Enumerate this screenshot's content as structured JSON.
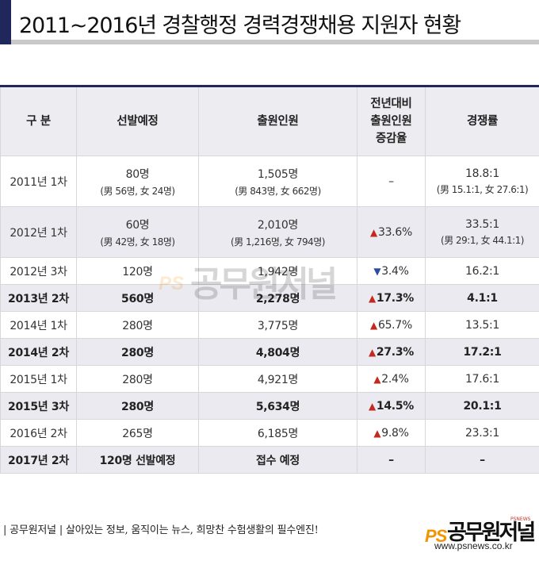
{
  "title": "2011~2016년 경찰행정 경력경쟁채용 지원자 현황",
  "table": {
    "headers": [
      "구 분",
      "선발예정",
      "출원인원",
      "전년대비\n출원인원\n증감율",
      "경쟁률"
    ],
    "rows": [
      {
        "period": "2011년 1차",
        "planned": "80명",
        "planned_sub": "(男 56명, 女 24명)",
        "applicants": "1,505명",
        "applicants_sub": "(男 843명, 女 662명)",
        "change": "–",
        "change_dir": "none",
        "ratio": "18.8:1",
        "ratio_sub": "(男 15.1:1, 女 27.6:1)",
        "bold": false,
        "shade": false,
        "tall": true
      },
      {
        "period": "2012년 1차",
        "planned": "60명",
        "planned_sub": "(男 42명, 女 18명)",
        "applicants": "2,010명",
        "applicants_sub": "(男 1,216명, 女 794명)",
        "change": "33.6%",
        "change_dir": "up",
        "ratio": "33.5:1",
        "ratio_sub": "(男 29:1, 女 44.1:1)",
        "bold": false,
        "shade": true,
        "tall": true
      },
      {
        "period": "2012년 3차",
        "planned": "120명",
        "planned_sub": "",
        "applicants": "1,942명",
        "applicants_sub": "",
        "change": "3.4%",
        "change_dir": "down",
        "ratio": "16.2:1",
        "ratio_sub": "",
        "bold": false,
        "shade": false,
        "tall": false
      },
      {
        "period": "2013년 2차",
        "planned": "560명",
        "planned_sub": "",
        "applicants": "2,278명",
        "applicants_sub": "",
        "change": "17.3%",
        "change_dir": "up",
        "ratio": "4.1:1",
        "ratio_sub": "",
        "bold": true,
        "shade": true,
        "tall": false
      },
      {
        "period": "2014년 1차",
        "planned": "280명",
        "planned_sub": "",
        "applicants": "3,775명",
        "applicants_sub": "",
        "change": "65.7%",
        "change_dir": "up",
        "ratio": "13.5:1",
        "ratio_sub": "",
        "bold": false,
        "shade": false,
        "tall": false
      },
      {
        "period": "2014년 2차",
        "planned": "280명",
        "planned_sub": "",
        "applicants": "4,804명",
        "applicants_sub": "",
        "change": "27.3%",
        "change_dir": "up",
        "ratio": "17.2:1",
        "ratio_sub": "",
        "bold": true,
        "shade": true,
        "tall": false
      },
      {
        "period": "2015년 1차",
        "planned": "280명",
        "planned_sub": "",
        "applicants": "4,921명",
        "applicants_sub": "",
        "change": "2.4%",
        "change_dir": "up",
        "ratio": "17.6:1",
        "ratio_sub": "",
        "bold": false,
        "shade": false,
        "tall": false
      },
      {
        "period": "2015년 3차",
        "planned": "280명",
        "planned_sub": "",
        "applicants": "5,634명",
        "applicants_sub": "",
        "change": "14.5%",
        "change_dir": "up",
        "ratio": "20.1:1",
        "ratio_sub": "",
        "bold": true,
        "shade": true,
        "tall": false
      },
      {
        "period": "2016년 2차",
        "planned": "265명",
        "planned_sub": "",
        "applicants": "6,185명",
        "applicants_sub": "",
        "change": "9.8%",
        "change_dir": "up",
        "ratio": "23.3:1",
        "ratio_sub": "",
        "bold": false,
        "shade": false,
        "tall": false
      },
      {
        "period": "2017년 2차",
        "planned": "120명 선발예정",
        "planned_sub": "",
        "applicants": "접수 예정",
        "applicants_sub": "",
        "change": "–",
        "change_dir": "none",
        "ratio": "–",
        "ratio_sub": "",
        "bold": true,
        "shade": true,
        "tall": false
      }
    ]
  },
  "watermark": {
    "ps": "PS",
    "brand": "공무원저널"
  },
  "footer": {
    "slogan": "| 공무원저널 | 살아있는 정보, 움직이는 뉴스, 희망찬 수험생활의 필수엔진!",
    "logo_ps": "PS",
    "logo_brand": "공무원저널",
    "logo_mini": "PSNEWS",
    "url": "www.psnews.co.kr"
  },
  "colors": {
    "accent": "#20275a",
    "header_bg": "#ececf1",
    "shade_bg": "#eaeaf0",
    "up_arrow": "#c3291e",
    "down_arrow": "#2d4d9c",
    "logo_orange": "#f29400"
  }
}
